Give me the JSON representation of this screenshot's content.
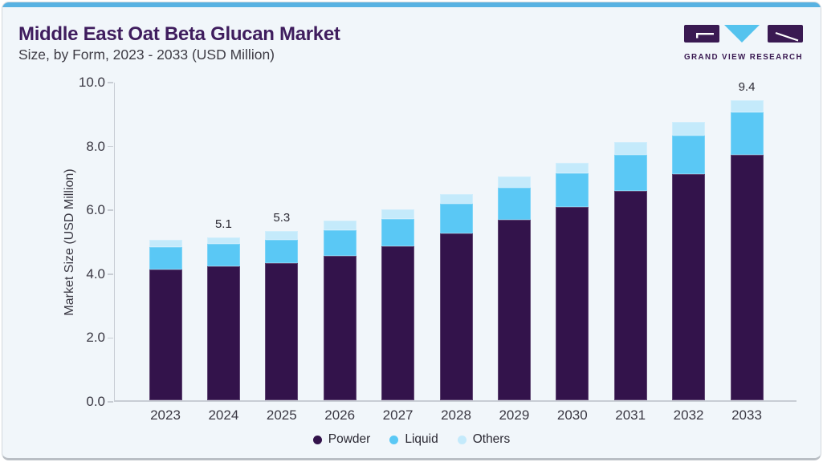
{
  "header": {
    "title": "Middle East Oat Beta Glucan Market",
    "subtitle": "Size, by Form, 2023 - 2033 (USD Million)"
  },
  "logo": {
    "text": "GRAND VIEW RESEARCH"
  },
  "colors": {
    "powder": "#33134b",
    "liquid": "#5ac8f5",
    "others": "#c4eafb",
    "accent_strip": "#58b2e2",
    "title_purple": "#3f1d5e",
    "text_dark": "#3a3843",
    "axis_gray": "#c8cdd4",
    "card_bg": "#f1f6fa",
    "logo_purple": "#3a1a52",
    "logo_cyan": "#55c3ee"
  },
  "chart_data": {
    "type": "bar",
    "stacked": true,
    "title": "Middle East Oat Beta Glucan Market Size, by Form, 2023 - 2033 (USD Million)",
    "categories": [
      "2023",
      "2024",
      "2025",
      "2026",
      "2027",
      "2028",
      "2029",
      "2030",
      "2031",
      "2032",
      "2033"
    ],
    "series": [
      {
        "name": "Powder",
        "color_key": "powder",
        "values": [
          4.1,
          4.2,
          4.3,
          4.52,
          4.82,
          5.23,
          5.65,
          6.05,
          6.55,
          7.08,
          7.7
        ]
      },
      {
        "name": "Liquid",
        "color_key": "liquid",
        "values": [
          0.7,
          0.69,
          0.72,
          0.8,
          0.85,
          0.92,
          1.02,
          1.05,
          1.13,
          1.21,
          1.31
        ]
      },
      {
        "name": "Others",
        "color_key": "others",
        "values": [
          0.23,
          0.21,
          0.28,
          0.31,
          0.31,
          0.32,
          0.33,
          0.33,
          0.4,
          0.42,
          0.39
        ]
      }
    ],
    "bar_labels": {
      "2024": "5.1",
      "2025": "5.3",
      "2033": "9.4"
    },
    "xlabel": "",
    "ylabel": "Market Size (USD Million)",
    "ylim": [
      0,
      10
    ],
    "yticks": [
      "0.0",
      "2.0",
      "4.0",
      "6.0",
      "8.0",
      "10.0"
    ],
    "grid": false,
    "legend_position": "bottom"
  }
}
